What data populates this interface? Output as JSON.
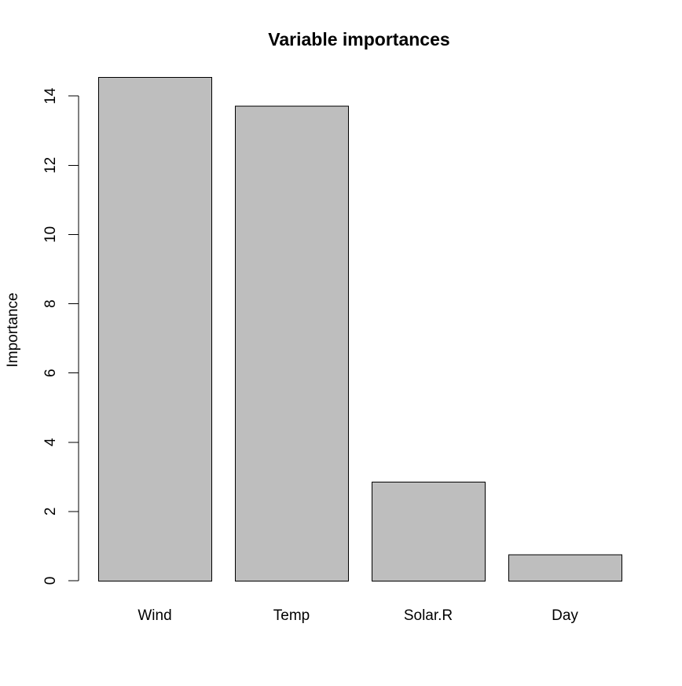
{
  "chart_data": {
    "type": "bar",
    "title": "Variable importances",
    "xlabel": "",
    "ylabel": "Importance",
    "categories": [
      "Wind",
      "Temp",
      "Solar.R",
      "Day"
    ],
    "values": [
      14.55,
      13.72,
      2.86,
      0.76
    ],
    "ylim": [
      0,
      14.55
    ],
    "yticks": [
      0,
      2,
      4,
      6,
      8,
      10,
      12,
      14
    ],
    "grid": false,
    "legend": "none",
    "bar_color": "#bebebe",
    "bar_border_color": "#000000"
  }
}
